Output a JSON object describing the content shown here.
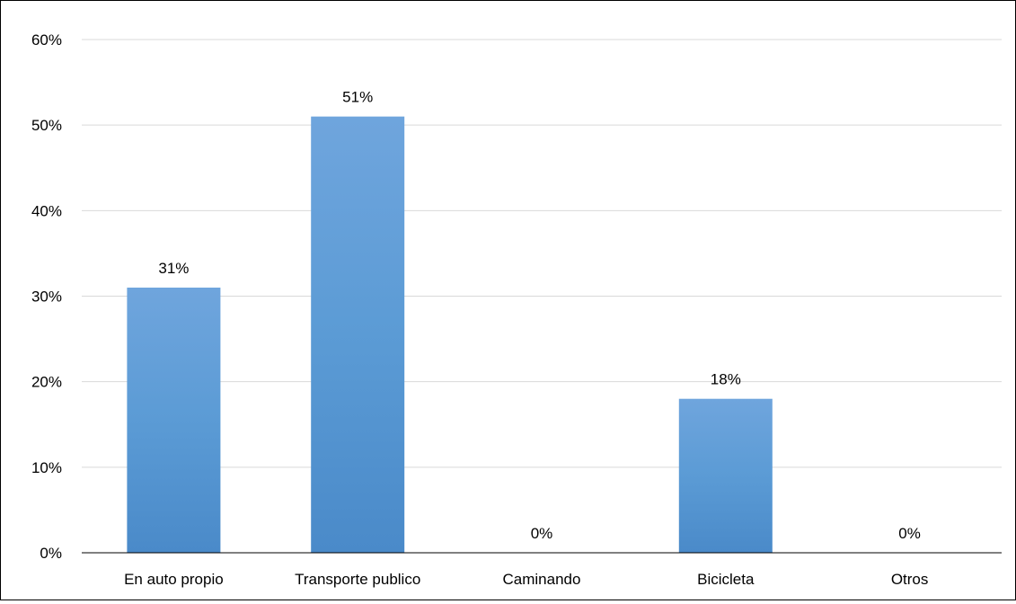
{
  "chart_data": {
    "type": "bar",
    "title": "",
    "xlabel": "",
    "ylabel": "",
    "categories": [
      "En auto propio",
      "Transporte publico",
      "Caminando",
      "Bicicleta",
      "Otros"
    ],
    "values": [
      0.31,
      0.51,
      0,
      0.18,
      0
    ],
    "data_labels": [
      "31%",
      "51%",
      "0%",
      "18%",
      "0%"
    ],
    "y_ticks": [
      0,
      0.1,
      0.2,
      0.3,
      0.4,
      0.5,
      0.6
    ],
    "y_tick_labels": [
      "0%",
      "10%",
      "20%",
      "30%",
      "40%",
      "50%",
      "60%"
    ],
    "ylim": [
      0,
      0.6
    ],
    "grid": true,
    "legend": "none",
    "colors": {
      "bar_top": "#6fa5dd",
      "bar_mid": "#5b9bd5",
      "bar_bottom": "#4a8ac9",
      "gridline": "#d9d9d9",
      "axis": "#000000"
    }
  }
}
